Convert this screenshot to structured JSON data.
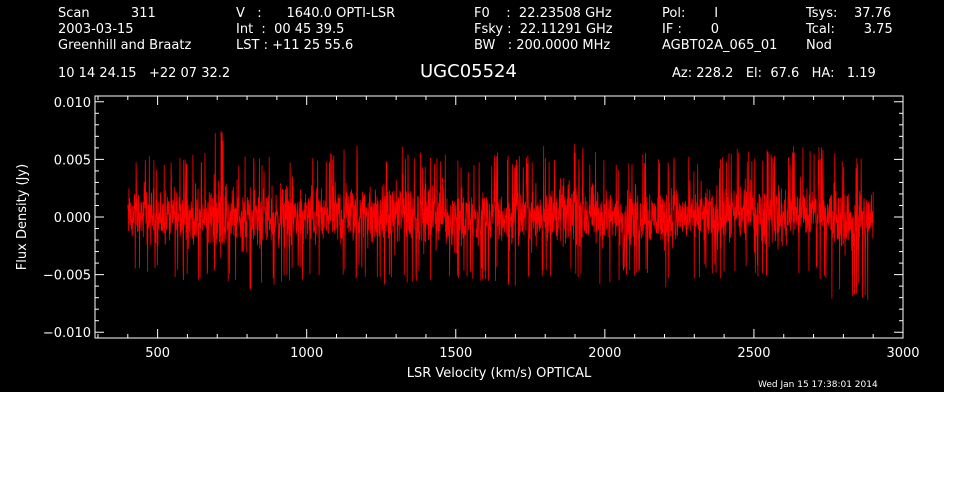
{
  "header": {
    "scan": "Scan          311",
    "date": "2003-03-15",
    "observers": "Greenhill and Braatz",
    "coords": "10 14 24.15   +22 07 32.2",
    "vel": "V   :      1640.0 OPTI-LSR",
    "int": "Int  :  00 45 39.5",
    "lst": "LST : +11 25 55.6",
    "f0": "F0    :  22.23508 GHz",
    "fsky": "Fsky :  22.11291 GHz",
    "bw": "BW   : 200.0000 MHz",
    "pol": "Pol:       I",
    "ifnum": "IF :       0",
    "project": "AGBT02A_065_01",
    "tsys": "Tsys:    37.76",
    "tcal": "Tcal:       3.75",
    "mode": "Nod",
    "source": "UGC05524",
    "azelha": "Az: 228.2   El:  67.6   HA:   1.19",
    "timestamp": "Wed Jan 15 17:38:01 2014"
  },
  "chart_data": {
    "type": "line",
    "xlabel": "LSR Velocity (km/s) OPTICAL",
    "ylabel": "Flux Density (Jy)",
    "xlim": [
      290,
      3000
    ],
    "ylim": [
      -0.0105,
      0.0105
    ],
    "xticks": [
      500,
      1000,
      1500,
      2000,
      2500,
      3000
    ],
    "xtick_labels": [
      "500",
      "1000",
      "1500",
      "2000",
      "2500",
      "3000"
    ],
    "yticks": [
      -0.01,
      -0.005,
      0.0,
      0.005,
      0.01
    ],
    "ytick_labels": [
      "−0.010",
      "−0.005",
      "0.000",
      "0.005",
      "0.010"
    ],
    "grid": false,
    "series": [
      {
        "color": "#ff0000",
        "x": [
          400,
          450,
          500,
          550,
          600,
          650,
          700,
          750,
          800,
          850,
          900,
          950,
          1000,
          1050,
          1100,
          1150,
          1200,
          1250,
          1300,
          1350,
          1400,
          1450,
          1500,
          1550,
          1600,
          1650,
          1700,
          1750,
          1800,
          1850,
          1900,
          1950,
          2000,
          2050,
          2100,
          2150,
          2200,
          2250,
          2300,
          2350,
          2400,
          2450,
          2500,
          2550,
          2600,
          2650,
          2700,
          2750,
          2800,
          2850,
          2900
        ],
        "y_mean": [
          0.0,
          0.0002,
          -0.0001,
          0.0,
          0.0001,
          -0.0002,
          0.0003,
          0.0,
          -0.0001,
          0.0,
          0.0001,
          0.0002,
          0.0,
          -0.0001,
          0.0002,
          0.0003,
          0.0001,
          0.0,
          0.0004,
          0.0002,
          0.0,
          0.0001,
          0.0,
          -0.0002,
          0.0001,
          0.0,
          -0.0001,
          0.0001,
          0.0003,
          0.0002,
          0.0004,
          0.0001,
          0.0,
          0.0,
          0.0002,
          0.0001,
          -0.0001,
          0.0,
          0.0,
          0.0001,
          0.0,
          0.0002,
          0.0003,
          0.0001,
          0.0,
          0.0003,
          0.0004,
          0.0001,
          -0.0004,
          -0.0003,
          -0.0002
        ],
        "y_max": [
          0.006,
          0.0055,
          0.005,
          0.0058,
          0.006,
          0.0052,
          0.0085,
          0.0062,
          0.0055,
          0.005,
          0.0058,
          0.0062,
          0.0055,
          0.005,
          0.0065,
          0.0068,
          0.0058,
          0.0052,
          0.007,
          0.0062,
          0.0055,
          0.006,
          0.0055,
          0.005,
          0.006,
          0.0055,
          0.0052,
          0.0058,
          0.0062,
          0.006,
          0.0065,
          0.0058,
          0.0055,
          0.0052,
          0.006,
          0.0058,
          0.005,
          0.0055,
          0.0052,
          0.0058,
          0.0055,
          0.006,
          0.0062,
          0.0058,
          0.0055,
          0.0065,
          0.0068,
          0.006,
          0.0052,
          0.0055,
          0.0058
        ],
        "y_min": [
          -0.0052,
          -0.0058,
          -0.0055,
          -0.006,
          -0.0055,
          -0.0058,
          -0.006,
          -0.0062,
          -0.0068,
          -0.0065,
          -0.006,
          -0.0055,
          -0.0058,
          -0.006,
          -0.0055,
          -0.0052,
          -0.0058,
          -0.006,
          -0.0055,
          -0.0058,
          -0.006,
          -0.0055,
          -0.0058,
          -0.0062,
          -0.0055,
          -0.0058,
          -0.006,
          -0.0055,
          -0.0052,
          -0.0058,
          -0.0055,
          -0.0058,
          -0.006,
          -0.0055,
          -0.0052,
          -0.0058,
          -0.0062,
          -0.0058,
          -0.0055,
          -0.0052,
          -0.0058,
          -0.0055,
          -0.0052,
          -0.0058,
          -0.006,
          -0.0055,
          -0.0052,
          -0.007,
          -0.0075,
          -0.0068,
          -0.0078
        ]
      }
    ]
  },
  "colors": {
    "background": "#000000",
    "axes": "#ffffff",
    "trace": "#ff0000"
  }
}
